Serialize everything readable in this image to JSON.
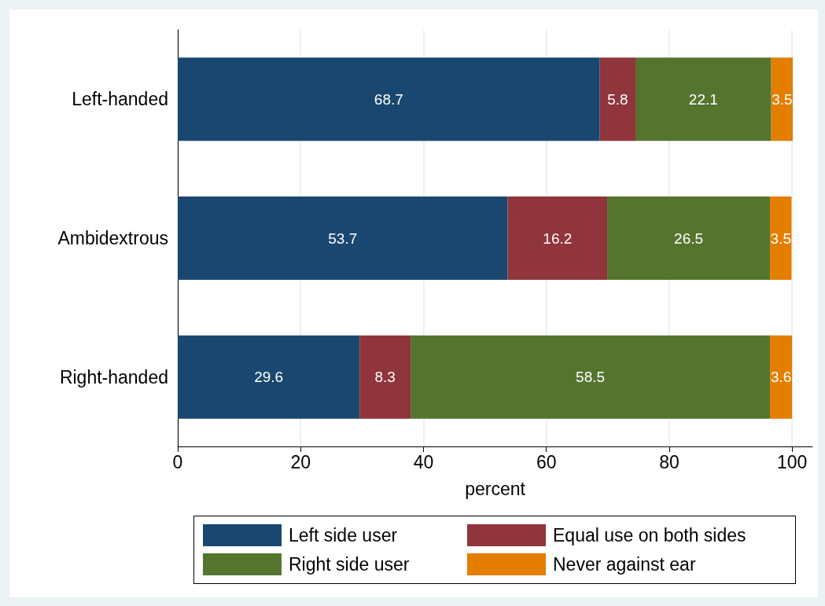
{
  "chart_data": {
    "type": "bar",
    "orientation": "horizontal",
    "stacked": true,
    "xlabel": "percent",
    "categories": [
      "Left-handed",
      "Ambidextrous",
      "Right-handed"
    ],
    "series": [
      {
        "name": "Left side user",
        "color": "#1a476f",
        "values": [
          68.7,
          53.7,
          29.6
        ]
      },
      {
        "name": "Equal use on both sides",
        "color": "#90353b",
        "values": [
          5.8,
          16.2,
          8.3
        ]
      },
      {
        "name": "Right side user",
        "color": "#55752f",
        "values": [
          22.1,
          26.5,
          58.5
        ]
      },
      {
        "name": "Never against ear",
        "color": "#e37e00",
        "values": [
          3.5,
          3.5,
          3.6
        ]
      }
    ],
    "xlim": [
      0,
      103.3
    ],
    "xticks": [
      0,
      20,
      40,
      60,
      80,
      100
    ],
    "grid": "x",
    "legend": "bottom",
    "data_labels": true
  }
}
